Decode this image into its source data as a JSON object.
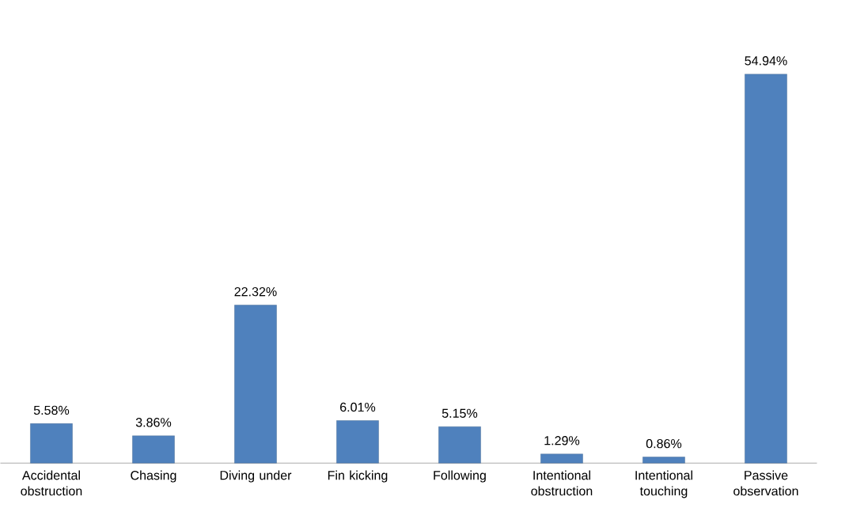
{
  "chart_data": {
    "type": "bar",
    "categories": [
      "Accidental obstruction",
      "Chasing",
      "Diving under",
      "Fin kicking",
      "Following",
      "Intentional obstruction",
      "Intentional touching",
      "Passive observation"
    ],
    "values": [
      5.58,
      3.86,
      22.32,
      6.01,
      5.15,
      1.29,
      0.86,
      54.94
    ],
    "value_labels": [
      "5.58%",
      "3.86%",
      "22.32%",
      "6.01%",
      "5.15%",
      "1.29%",
      "0.86%",
      "54.94%"
    ],
    "color": "#4f81bd"
  }
}
